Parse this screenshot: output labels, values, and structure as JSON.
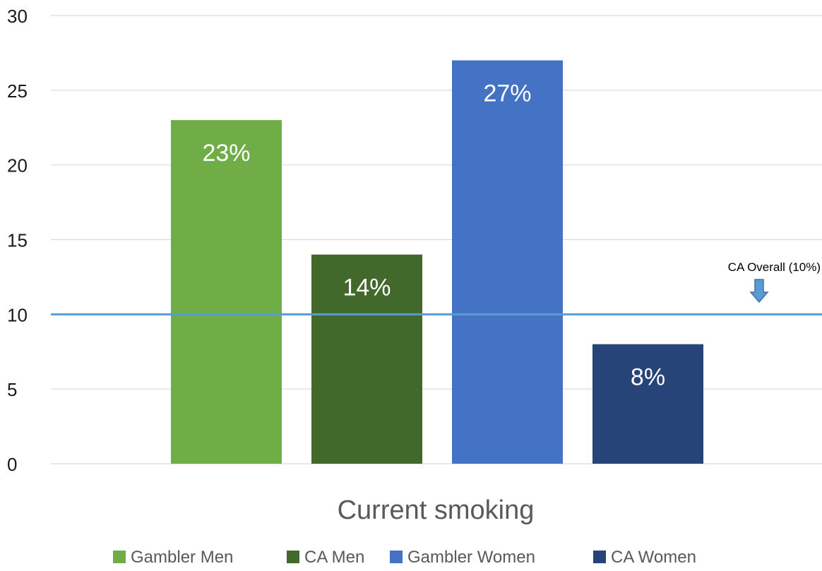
{
  "chart_data": {
    "type": "bar",
    "categories": [
      "Current smoking"
    ],
    "series": [
      {
        "name": "Gambler Men",
        "values": [
          23
        ],
        "color": "#70AD47",
        "data_label": "23%"
      },
      {
        "name": "CA Men",
        "values": [
          14
        ],
        "color": "#43682B",
        "data_label": "14%"
      },
      {
        "name": "Gambler Women",
        "values": [
          27
        ],
        "color": "#4472C4",
        "data_label": "27%"
      },
      {
        "name": "CA Women",
        "values": [
          8
        ],
        "color": "#264478",
        "data_label": "8%"
      }
    ],
    "ylim": [
      0,
      30
    ],
    "yticks": [
      0,
      5,
      10,
      15,
      20,
      25,
      30
    ],
    "grid": true,
    "legend_position": "bottom",
    "reference_line": {
      "value": 10,
      "label": "CA Overall (10%)",
      "color": "#5B9BD5"
    },
    "xlabel": "Current smoking",
    "ylabel": "",
    "title": ""
  }
}
